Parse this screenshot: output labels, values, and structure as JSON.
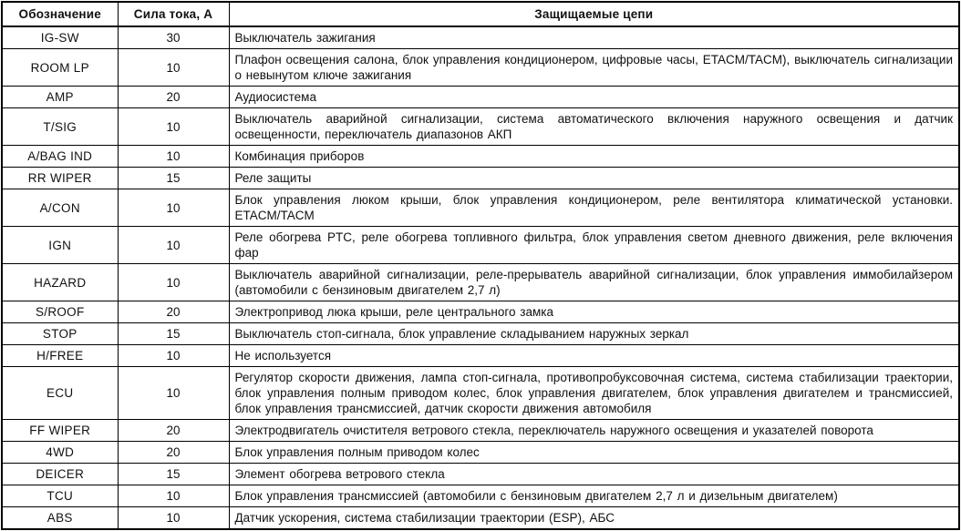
{
  "table": {
    "columns": [
      "Обозначение",
      "Сила тока, А",
      "Защищаемые цепи"
    ],
    "rows": [
      {
        "code": "IG-SW",
        "amp": "30",
        "circuits": "Выключатель зажигания"
      },
      {
        "code": "ROOM LP",
        "amp": "10",
        "circuits": "Плафон освещения салона, блок управления кондиционером, цифровые часы, ETACM/TACM), выключатель сигнализации о невынутом ключе зажигания"
      },
      {
        "code": "AMP",
        "amp": "20",
        "circuits": "Аудиосистема"
      },
      {
        "code": "T/SIG",
        "amp": "10",
        "circuits": "Выключатель аварийной сигнализации, система автоматического включения наружного освещения и датчик освещенности, переключатель диапазонов АКП"
      },
      {
        "code": "A/BAG IND",
        "amp": "10",
        "circuits": "Комбинация приборов"
      },
      {
        "code": "RR WIPER",
        "amp": "15",
        "circuits": "Реле защиты"
      },
      {
        "code": "A/CON",
        "amp": "10",
        "circuits": "Блок управления люком крыши, блок управления кондиционером, реле вентилятора климатической установки. ETACM/TACM"
      },
      {
        "code": "IGN",
        "amp": "10",
        "circuits": "Реле обогрева PTC, реле обогрева топливного фильтра, блок управления светом дневного движения, реле включения фар"
      },
      {
        "code": "HAZARD",
        "amp": "10",
        "circuits": "Выключатель аварийной сигнализации, реле-прерыватель аварийной сигнализации, блок управления иммобилайзером (автомобили с бензиновым двигателем 2,7 л)"
      },
      {
        "code": "S/ROOF",
        "amp": "20",
        "circuits": "Электропривод люка крыши, реле центрального замка"
      },
      {
        "code": "STOP",
        "amp": "15",
        "circuits": "Выключатель стоп-сигнала, блок управление складыванием наружных зеркал"
      },
      {
        "code": "H/FREE",
        "amp": "10",
        "circuits": "Не используется"
      },
      {
        "code": "ECU",
        "amp": "10",
        "circuits": "Регулятор скорости движения, лампа стоп-сигнала, противопробуксовочная система, система стабилизации траектории, блок управления полным приводом колес, блок управления двигателем, блок управления двигателем и трансмиссией, блок управления трансмиссией, датчик скорости движения автомобиля"
      },
      {
        "code": "FF WIPER",
        "amp": "20",
        "circuits": "Электродвигатель очистителя ветрового стекла, переключатель наружного освещения и указателей поворота"
      },
      {
        "code": "4WD",
        "amp": "20",
        "circuits": "Блок управления полным приводом колес"
      },
      {
        "code": "DEICER",
        "amp": "15",
        "circuits": "Элемент обогрева ветрового стекла"
      },
      {
        "code": "TCU",
        "amp": "10",
        "circuits": "Блок управления трансмиссией (автомобили с бензиновым двигателем 2,7 л и дизельным двигателем)"
      },
      {
        "code": "ABS",
        "amp": "10",
        "circuits": "Датчик ускорения, система стабилизации траектории (ESP), АБС"
      }
    ],
    "colors": {
      "border": "#000000",
      "text": "#111111",
      "background": "#ffffff"
    }
  }
}
